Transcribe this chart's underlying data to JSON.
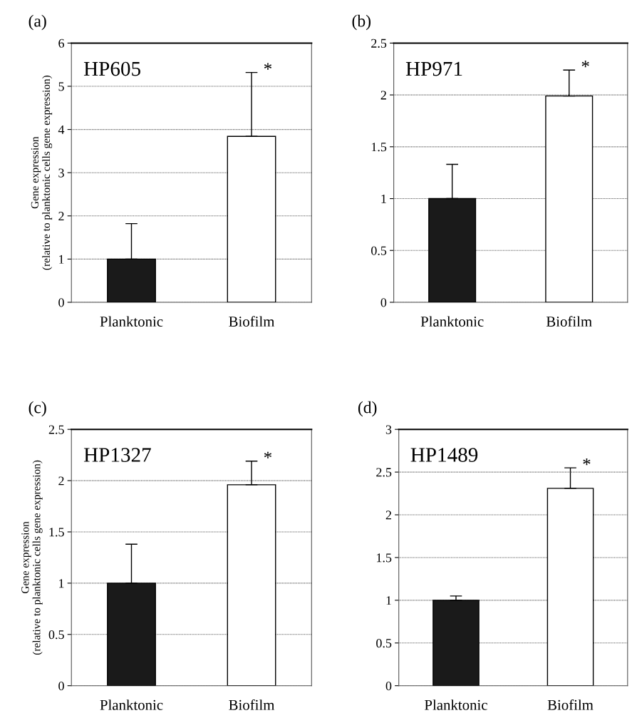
{
  "chart_data": [
    {
      "type": "bar",
      "title": "(a)",
      "ylabel": "Gene expression\n(relative to planktonic cells gene expression)",
      "categories": [
        "Planktonic",
        "Biofilm"
      ],
      "values": [
        1,
        3.84
      ],
      "errors": [
        [
          1,
          1.82
        ],
        [
          3.84,
          5.32
        ]
      ],
      "colors": [
        "#1a1a1a",
        "#ffffff"
      ],
      "ylim": [
        0,
        6
      ],
      "yticks": [
        0,
        1,
        2,
        3,
        4,
        5,
        6
      ],
      "grid": "y",
      "annotations": [
        "HP605",
        "*"
      ]
    },
    {
      "type": "bar",
      "title": "(b)",
      "categories": [
        "Planktonic",
        "Biofilm"
      ],
      "values": [
        1,
        1.99
      ],
      "errors": [
        [
          1,
          1.33
        ],
        [
          1.99,
          2.24
        ]
      ],
      "colors": [
        "#1a1a1a",
        "#ffffff"
      ],
      "ylim": [
        0,
        2.5
      ],
      "yticks": [
        0,
        0.5,
        1,
        1.5,
        2,
        2.5
      ],
      "grid": "y",
      "annotations": [
        "HP971",
        "*"
      ]
    },
    {
      "type": "bar",
      "title": "(c)",
      "ylabel": "Gene expression\n(relative to planktonic cells gene expression)",
      "categories": [
        "Planktonic",
        "Biofilm"
      ],
      "values": [
        1,
        1.96
      ],
      "errors": [
        [
          1,
          1.38
        ],
        [
          1.96,
          2.19
        ]
      ],
      "colors": [
        "#1a1a1a",
        "#ffffff"
      ],
      "ylim": [
        0,
        2.5
      ],
      "yticks": [
        0,
        0.5,
        1,
        1.5,
        2,
        2.5
      ],
      "grid": "y",
      "annotations": [
        "HP1327",
        "*"
      ]
    },
    {
      "type": "bar",
      "title": "(d)",
      "categories": [
        "Planktonic",
        "Biofilm"
      ],
      "values": [
        1,
        2.31
      ],
      "errors": [
        [
          1,
          1.05
        ],
        [
          2.31,
          2.55
        ]
      ],
      "colors": [
        "#1a1a1a",
        "#ffffff"
      ],
      "ylim": [
        0,
        3
      ],
      "yticks": [
        0,
        0.5,
        1,
        1.5,
        2,
        2.5,
        3
      ],
      "grid": "y",
      "annotations": [
        "HP1489",
        "*"
      ]
    }
  ]
}
